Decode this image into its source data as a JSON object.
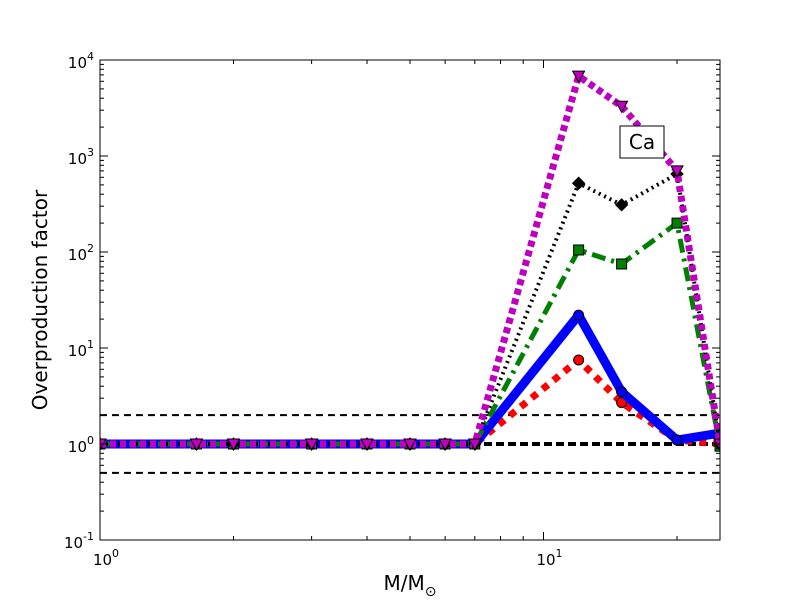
{
  "chart_data": {
    "type": "line",
    "xlabel": "M/M",
    "xlabel_subscript": "⊙",
    "ylabel": "Overproduction factor",
    "xscale": "log",
    "yscale": "log",
    "xlim": [
      1,
      25
    ],
    "ylim": [
      0.1,
      10000
    ],
    "x_ticks": [
      {
        "value": 1,
        "base": "10",
        "exp": "0"
      },
      {
        "value": 10,
        "base": "10",
        "exp": "1"
      }
    ],
    "y_ticks": [
      {
        "value": 0.1,
        "base": "10",
        "exp": "-1"
      },
      {
        "value": 1,
        "base": "10",
        "exp": "0"
      },
      {
        "value": 10,
        "base": "10",
        "exp": "1"
      },
      {
        "value": 100,
        "base": "10",
        "exp": "2"
      },
      {
        "value": 1000,
        "base": "10",
        "exp": "3"
      },
      {
        "value": 10000,
        "base": "10",
        "exp": "4"
      }
    ],
    "annotation": "Ca",
    "reference_lines": [
      0.5,
      1,
      2
    ],
    "x": [
      1,
      1.65,
      2,
      3,
      4,
      5,
      6,
      7,
      12,
      15,
      20,
      25
    ],
    "series": [
      {
        "color": "#ff0000",
        "style": "dotted",
        "marker": "circle",
        "values": [
          1,
          1,
          1,
          1,
          1,
          1,
          1,
          1,
          7.5,
          2.7,
          1.1,
          1.0
        ]
      },
      {
        "color": "#0000ff",
        "style": "solid",
        "marker": "circle",
        "values": [
          1,
          1,
          1,
          1,
          1,
          1,
          1,
          1,
          22,
          3.5,
          1.1,
          1.3
        ]
      },
      {
        "color": "#008000",
        "style": "dashdot",
        "marker": "square",
        "values": [
          1,
          1,
          1,
          1,
          1,
          1,
          1,
          1,
          105,
          75,
          200,
          0.95
        ]
      },
      {
        "color": "#000000",
        "style": "dashed",
        "marker": "diamond",
        "values": [
          1,
          1,
          1,
          1,
          1,
          1,
          1,
          1,
          520,
          310,
          650,
          1.0
        ]
      },
      {
        "color": "#bf00bf",
        "style": "dotted",
        "marker": "triangle-down",
        "values": [
          1,
          1,
          1,
          1,
          1,
          1,
          1,
          1,
          6800,
          3300,
          700,
          1.0
        ]
      }
    ]
  }
}
